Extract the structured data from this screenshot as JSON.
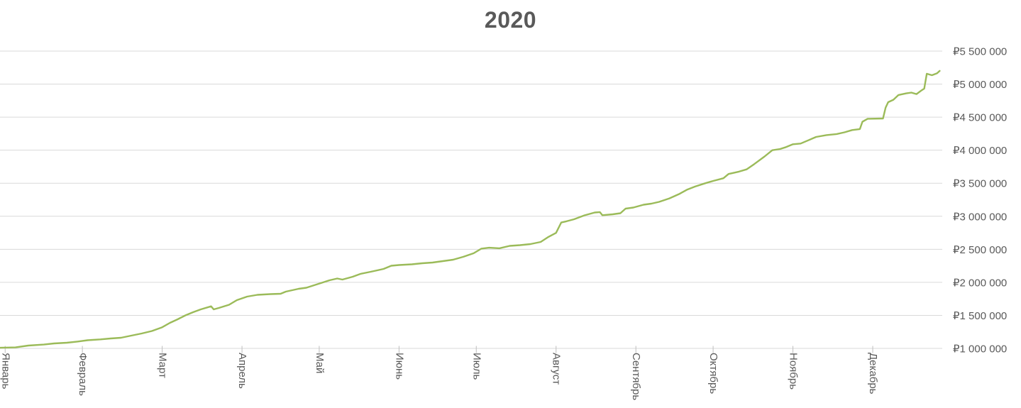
{
  "chart_data": {
    "type": "line",
    "title": "2020",
    "currency_symbol": "₽",
    "grid": true,
    "legend": false,
    "x_axis": {
      "months": [
        "Январь",
        "Февраль",
        "Март",
        "Апрель",
        "Май",
        "Июнь",
        "Июль",
        "Август",
        "Сентябрь",
        "Октябрь",
        "Ноябрь",
        "Декабрь"
      ],
      "tick_days": [
        2,
        32,
        63,
        94,
        124,
        155,
        185,
        216,
        247,
        277,
        308,
        339
      ],
      "days_in_year": 366
    },
    "y_axis": {
      "side": "right",
      "min": 1000000,
      "max": 5500000,
      "step": 500000,
      "tick_labels": [
        "₽1 000 000",
        "₽1 500 000",
        "₽2 000 000",
        "₽2 500 000",
        "₽3 000 000",
        "₽3 500 000",
        "₽4 000 000",
        "₽4 500 000",
        "₽5 000 000",
        "₽5 500 000"
      ]
    },
    "series": [
      {
        "points": [
          [
            0,
            1010000
          ],
          [
            6,
            1015000
          ],
          [
            11,
            1043000
          ],
          [
            17,
            1058000
          ],
          [
            21,
            1075000
          ],
          [
            26,
            1086000
          ],
          [
            30,
            1103000
          ],
          [
            34,
            1124000
          ],
          [
            39,
            1136000
          ],
          [
            43,
            1150000
          ],
          [
            47,
            1161000
          ],
          [
            51,
            1193000
          ],
          [
            55,
            1226000
          ],
          [
            59,
            1263000
          ],
          [
            63,
            1320000
          ],
          [
            66,
            1387000
          ],
          [
            69,
            1440000
          ],
          [
            72,
            1499000
          ],
          [
            75,
            1548000
          ],
          [
            78,
            1591000
          ],
          [
            82,
            1637000
          ],
          [
            83,
            1591000
          ],
          [
            85,
            1612000
          ],
          [
            89,
            1661000
          ],
          [
            92,
            1730000
          ],
          [
            96,
            1784000
          ],
          [
            100,
            1811000
          ],
          [
            105,
            1822000
          ],
          [
            109,
            1827000
          ],
          [
            111,
            1859000
          ],
          [
            116,
            1902000
          ],
          [
            119,
            1918000
          ],
          [
            122,
            1956000
          ],
          [
            125,
            1993000
          ],
          [
            128,
            2031000
          ],
          [
            131,
            2058000
          ],
          [
            133,
            2042000
          ],
          [
            137,
            2085000
          ],
          [
            140,
            2128000
          ],
          [
            144,
            2160000
          ],
          [
            149,
            2203000
          ],
          [
            152,
            2251000
          ],
          [
            155,
            2262000
          ],
          [
            160,
            2273000
          ],
          [
            164,
            2289000
          ],
          [
            168,
            2300000
          ],
          [
            172,
            2321000
          ],
          [
            176,
            2343000
          ],
          [
            180,
            2386000
          ],
          [
            184,
            2440000
          ],
          [
            187,
            2510000
          ],
          [
            190,
            2524000
          ],
          [
            194,
            2515000
          ],
          [
            198,
            2552000
          ],
          [
            202,
            2563000
          ],
          [
            206,
            2579000
          ],
          [
            210,
            2611000
          ],
          [
            213,
            2687000
          ],
          [
            216,
            2748000
          ],
          [
            218,
            2905000
          ],
          [
            220,
            2923000
          ],
          [
            223,
            2955000
          ],
          [
            227,
            3014000
          ],
          [
            231,
            3057000
          ],
          [
            233,
            3063000
          ],
          [
            234,
            3016000
          ],
          [
            238,
            3030000
          ],
          [
            241,
            3046000
          ],
          [
            243,
            3116000
          ],
          [
            246,
            3132000
          ],
          [
            250,
            3175000
          ],
          [
            253,
            3191000
          ],
          [
            256,
            3218000
          ],
          [
            260,
            3270000
          ],
          [
            264,
            3340000
          ],
          [
            267,
            3405000
          ],
          [
            270,
            3450000
          ],
          [
            274,
            3500000
          ],
          [
            277,
            3535000
          ],
          [
            281,
            3575000
          ],
          [
            283,
            3640000
          ],
          [
            287,
            3675000
          ],
          [
            290,
            3710000
          ],
          [
            293,
            3790000
          ],
          [
            297,
            3905000
          ],
          [
            300,
            4000000
          ],
          [
            303,
            4018000
          ],
          [
            305,
            4043000
          ],
          [
            308,
            4090000
          ],
          [
            311,
            4101000
          ],
          [
            314,
            4150000
          ],
          [
            317,
            4200000
          ],
          [
            321,
            4228000
          ],
          [
            325,
            4245000
          ],
          [
            328,
            4270000
          ],
          [
            331,
            4305000
          ],
          [
            334,
            4320000
          ],
          [
            335,
            4430000
          ],
          [
            337,
            4475000
          ],
          [
            343,
            4480000
          ],
          [
            344,
            4645000
          ],
          [
            345,
            4727000
          ],
          [
            347,
            4763000
          ],
          [
            349,
            4835000
          ],
          [
            352,
            4860000
          ],
          [
            354,
            4872000
          ],
          [
            356,
            4849000
          ],
          [
            358,
            4907000
          ],
          [
            359,
            4932000
          ],
          [
            360,
            5157000
          ],
          [
            361,
            5146000
          ],
          [
            362,
            5135000
          ],
          [
            364,
            5164000
          ],
          [
            365,
            5200000
          ]
        ]
      }
    ]
  },
  "colors": {
    "line": "#9bbb59",
    "gridline": "#d9d9d9",
    "axis_line": "#d9d9d9",
    "tick_mark": "#bfbfbf",
    "axis_label": "#595959",
    "title": "#595959",
    "background": "#ffffff"
  }
}
